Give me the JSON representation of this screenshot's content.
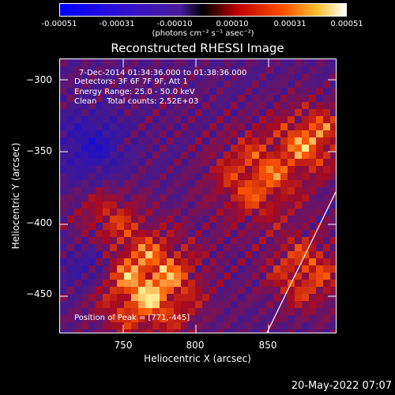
{
  "colorbar": {
    "ticks": [
      "-0.00051",
      "-0.00031",
      "-0.00010",
      "0.00010",
      "0.00031",
      "0.00051"
    ],
    "unit": "(photons cm⁻² s⁻¹ asec⁻²)"
  },
  "chart_data": {
    "type": "heatmap",
    "title": "Reconstructed RHESSI Image",
    "xlabel": "Heliocentric X (arcsec)",
    "ylabel": "Heliocentric Y (arcsec)",
    "xlim": [
      705,
      895
    ],
    "ylim": [
      -475,
      -285
    ],
    "x_ticks": [
      "750",
      "800",
      "850"
    ],
    "y_ticks": [
      "−300",
      "−350",
      "−400",
      "−450"
    ],
    "color_range": [
      -0.00051,
      0.00051
    ],
    "peak": [
      771,
      -445
    ]
  },
  "info": {
    "time": "7-Dec-2014 01:34:36.000 to 01:38:36.000",
    "detectors": "Detectors: 3F 6F 7F 9F, Att 1",
    "energy": "Energy Range: 25.0 - 50.0 keV",
    "clean": "Clean    Total counts: 2.52E+03",
    "peak": "Position of Peak = [771,-445]"
  },
  "datestamp": "20-May-2022 07:07"
}
